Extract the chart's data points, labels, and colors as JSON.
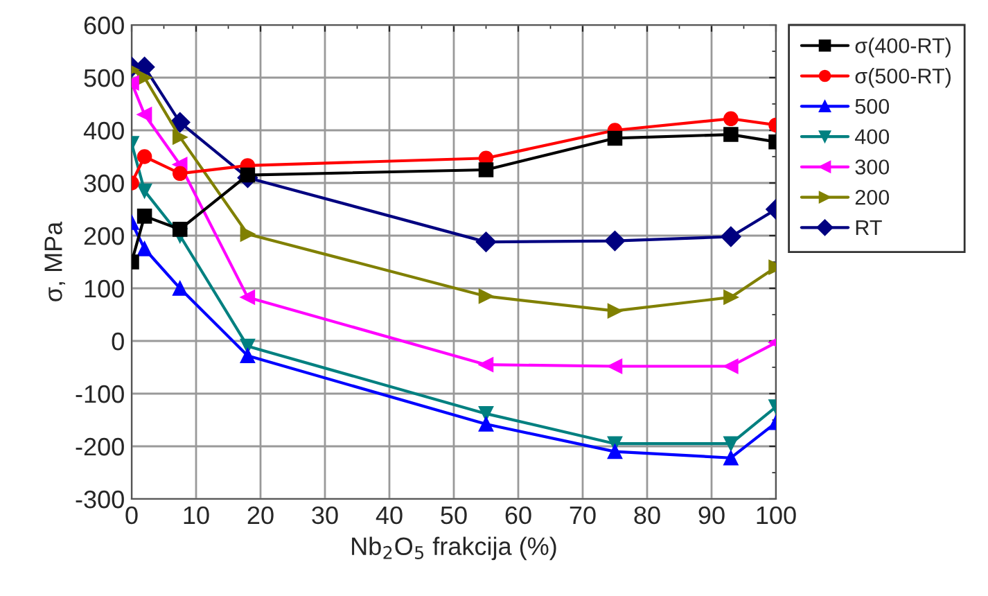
{
  "chart_data": {
    "type": "line",
    "xlabel": "Nb$_{2}$O$_{5}$ frakcija (%)",
    "ylabel": "σ, MPa",
    "x": [
      0,
      2,
      7.5,
      18,
      55,
      75,
      93,
      100
    ],
    "series": [
      {
        "name": "σ(400-RT)",
        "color": "#000000",
        "marker": "square",
        "values": [
          150,
          237,
          212,
          315,
          325,
          385,
          392,
          378
        ]
      },
      {
        "name": "σ(500-RT)",
        "color": "#ff0000",
        "marker": "circle",
        "values": [
          300,
          350,
          318,
          333,
          347,
          400,
          422,
          410
        ]
      },
      {
        "name": "500",
        "color": "#0000ff",
        "marker": "triangle",
        "values": [
          225,
          175,
          100,
          -28,
          -158,
          -210,
          -222,
          -155
        ]
      },
      {
        "name": "400",
        "color": "#008080",
        "marker": "triangle_down",
        "values": [
          375,
          285,
          200,
          -10,
          -138,
          -195,
          -195,
          -125
        ]
      },
      {
        "name": "300",
        "color": "#ff00ff",
        "marker": "triangle_left",
        "values": [
          490,
          430,
          335,
          83,
          -45,
          -48,
          -48,
          -3
        ]
      },
      {
        "name": "200",
        "color": "#808000",
        "marker": "triangle_right",
        "values": [
          515,
          500,
          387,
          203,
          85,
          57,
          83,
          140
        ]
      },
      {
        "name": "RT",
        "color": "#000080",
        "marker": "diamond",
        "values": [
          520,
          520,
          415,
          310,
          188,
          190,
          198,
          250
        ]
      }
    ],
    "xlim": [
      0,
      100
    ],
    "xticks": [
      0,
      10,
      20,
      30,
      40,
      50,
      60,
      70,
      80,
      90,
      100
    ],
    "ylim": [
      -300,
      600
    ],
    "yticks": [
      -300,
      -200,
      -100,
      0,
      100,
      200,
      300,
      400,
      500,
      600
    ],
    "grid": true,
    "legend": "right",
    "line_style": "solid"
  }
}
